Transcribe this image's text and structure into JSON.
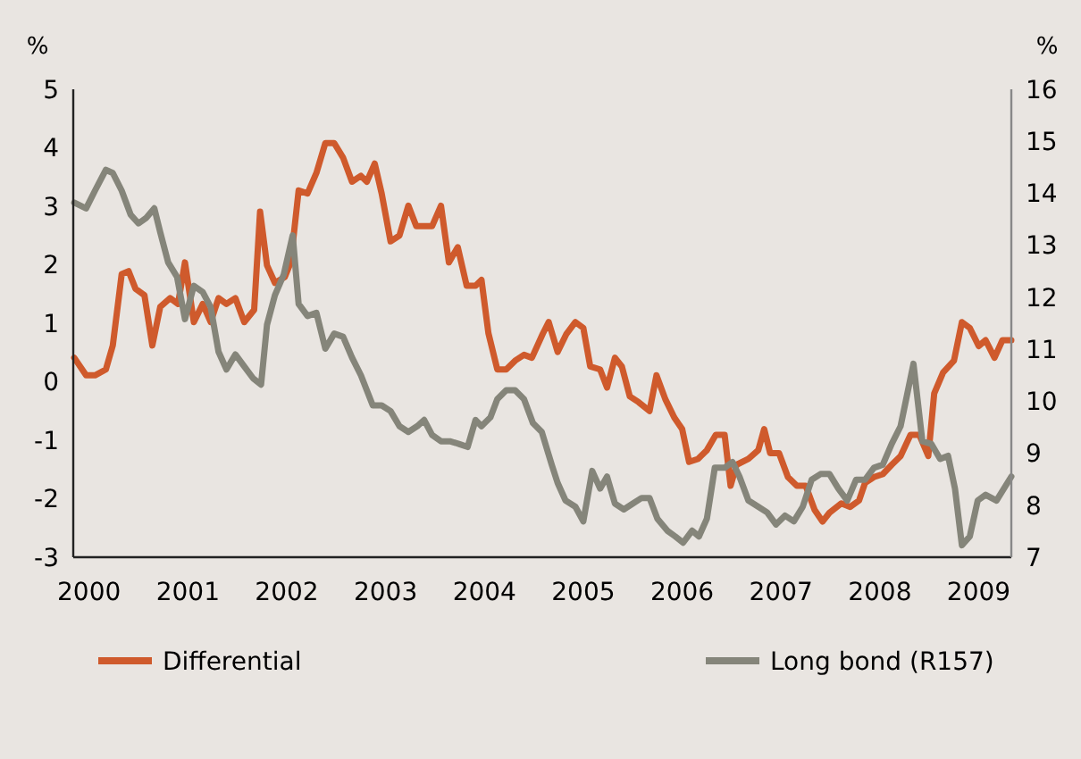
{
  "chart_data": {
    "type": "line",
    "ylabel": "%",
    "y2label": "%",
    "xlim": [
      1999.84,
      2009.33
    ],
    "xticks": [
      2000,
      2001,
      2002,
      2003,
      2004,
      2005,
      2006,
      2007,
      2008,
      2009
    ],
    "ylim": [
      -3,
      5
    ],
    "yticks": [
      -3,
      -2,
      -1,
      0,
      1,
      2,
      3,
      4,
      5
    ],
    "y2lim": [
      7,
      16
    ],
    "y2ticks": [
      7,
      8,
      9,
      10,
      11,
      12,
      13,
      14,
      15,
      16
    ],
    "grid": false,
    "legend": "bottom",
    "marker": "none",
    "line_style": "solid",
    "series": [
      {
        "name": "Differential",
        "color": "#cf5a2c",
        "x": [
          1999.85,
          1999.97,
          2000.06,
          2000.17,
          2000.24,
          2000.33,
          2000.4,
          2000.47,
          2000.56,
          2000.64,
          2000.72,
          2000.82,
          2000.9,
          2000.97,
          2001.06,
          2001.15,
          2001.23,
          2001.31,
          2001.39,
          2001.48,
          2001.57,
          2001.67,
          2001.73,
          2001.8,
          2001.88,
          2001.98,
          2002.04,
          2002.12,
          2002.21,
          2002.3,
          2002.39,
          2002.48,
          2002.57,
          2002.66,
          2002.75,
          2002.81,
          2002.89,
          2002.96,
          2003.05,
          2003.14,
          2003.23,
          2003.31,
          2003.38,
          2003.47,
          2003.56,
          2003.64,
          2003.73,
          2003.82,
          2003.91,
          2003.97,
          2004.04,
          2004.13,
          2004.22,
          2004.31,
          2004.4,
          2004.48,
          2004.59,
          2004.65,
          2004.74,
          2004.83,
          2004.92,
          2005.0,
          2005.07,
          2005.17,
          2005.24,
          2005.32,
          2005.39,
          2005.47,
          2005.56,
          2005.67,
          2005.74,
          2005.83,
          2005.92,
          2006.0,
          2006.07,
          2006.16,
          2006.25,
          2006.34,
          2006.43,
          2006.49,
          2006.55,
          2006.67,
          2006.77,
          2006.83,
          2006.89,
          2006.98,
          2007.07,
          2007.16,
          2007.25,
          2007.34,
          2007.42,
          2007.49,
          2007.61,
          2007.7,
          2007.79,
          2007.85,
          2007.94,
          2008.03,
          2008.12,
          2008.21,
          2008.31,
          2008.4,
          2008.49,
          2008.55,
          2008.64,
          2008.75,
          2008.83,
          2008.91,
          2009.0,
          2009.07,
          2009.16,
          2009.24,
          2009.33
        ],
        "values": [
          0.41,
          0.11,
          0.11,
          0.21,
          0.62,
          1.84,
          1.89,
          1.59,
          1.48,
          0.62,
          1.28,
          1.43,
          1.33,
          2.04,
          1.02,
          1.33,
          1.02,
          1.43,
          1.33,
          1.43,
          1.02,
          1.23,
          2.91,
          1.99,
          1.69,
          1.79,
          2.04,
          3.27,
          3.22,
          3.57,
          4.08,
          4.08,
          3.83,
          3.42,
          3.52,
          3.42,
          3.73,
          3.22,
          2.4,
          2.5,
          3.01,
          2.66,
          2.66,
          2.66,
          3.01,
          2.04,
          2.3,
          1.64,
          1.64,
          1.74,
          0.83,
          0.21,
          0.21,
          0.36,
          0.46,
          0.41,
          0.82,
          1.02,
          0.51,
          0.82,
          1.02,
          0.92,
          0.26,
          0.21,
          -0.1,
          0.41,
          0.26,
          -0.25,
          -0.35,
          -0.5,
          0.11,
          -0.3,
          -0.61,
          -0.81,
          -1.37,
          -1.32,
          -1.17,
          -0.91,
          -0.91,
          -1.78,
          -1.42,
          -1.32,
          -1.17,
          -0.81,
          -1.22,
          -1.22,
          -1.63,
          -1.78,
          -1.78,
          -2.19,
          -2.39,
          -2.24,
          -2.08,
          -2.14,
          -2.03,
          -1.73,
          -1.63,
          -1.58,
          -1.42,
          -1.27,
          -0.91,
          -0.91,
          -1.27,
          -0.2,
          0.16,
          0.36,
          1.02,
          0.92,
          0.61,
          0.71,
          0.41,
          0.71,
          0.71
        ]
      },
      {
        "name": "Long bond (R157)",
        "color": "#85857a",
        "axis": "y2",
        "x": [
          1999.85,
          1999.97,
          2000.06,
          2000.17,
          2000.24,
          2000.33,
          2000.42,
          2000.5,
          2000.58,
          2000.66,
          2000.72,
          2000.8,
          2000.89,
          2000.97,
          2001.06,
          2001.15,
          2001.23,
          2001.31,
          2001.39,
          2001.48,
          2001.57,
          2001.66,
          2001.74,
          2001.8,
          2001.88,
          2001.97,
          2002.06,
          2002.12,
          2002.21,
          2002.3,
          2002.39,
          2002.48,
          2002.57,
          2002.66,
          2002.75,
          2002.87,
          2002.96,
          2003.05,
          2003.14,
          2003.23,
          2003.32,
          2003.39,
          2003.47,
          2003.56,
          2003.65,
          2003.74,
          2003.83,
          2003.91,
          2003.97,
          2004.06,
          2004.13,
          2004.22,
          2004.31,
          2004.4,
          2004.49,
          2004.58,
          2004.68,
          2004.74,
          2004.82,
          2004.92,
          2005.0,
          2005.09,
          2005.17,
          2005.24,
          2005.32,
          2005.41,
          2005.5,
          2005.59,
          2005.67,
          2005.75,
          2005.85,
          2005.93,
          2006.01,
          2006.1,
          2006.17,
          2006.25,
          2006.33,
          2006.43,
          2006.51,
          2006.58,
          2006.67,
          2006.77,
          2006.86,
          2006.95,
          2007.04,
          2007.13,
          2007.22,
          2007.31,
          2007.4,
          2007.49,
          2007.58,
          2007.67,
          2007.76,
          2007.85,
          2007.94,
          2008.03,
          2008.12,
          2008.21,
          2008.34,
          2008.43,
          2008.52,
          2008.61,
          2008.69,
          2008.76,
          2008.83,
          2008.91,
          2008.99,
          2009.07,
          2009.18,
          2009.33
        ],
        "values": [
          13.82,
          13.71,
          14.05,
          14.45,
          14.39,
          14.05,
          13.59,
          13.42,
          13.53,
          13.71,
          13.25,
          12.67,
          12.39,
          11.58,
          12.22,
          12.1,
          11.81,
          10.95,
          10.61,
          10.9,
          10.67,
          10.44,
          10.32,
          11.47,
          12.04,
          12.44,
          13.19,
          11.87,
          11.64,
          11.7,
          11.01,
          11.3,
          11.24,
          10.84,
          10.5,
          9.92,
          9.92,
          9.81,
          9.52,
          9.41,
          9.52,
          9.64,
          9.35,
          9.23,
          9.23,
          9.18,
          9.12,
          9.64,
          9.52,
          9.69,
          10.04,
          10.21,
          10.21,
          10.04,
          9.58,
          9.41,
          8.78,
          8.43,
          8.09,
          7.97,
          7.69,
          8.66,
          8.32,
          8.55,
          8.03,
          7.92,
          8.03,
          8.14,
          8.14,
          7.74,
          7.51,
          7.4,
          7.28,
          7.51,
          7.4,
          7.74,
          8.72,
          8.72,
          8.83,
          8.55,
          8.09,
          7.97,
          7.86,
          7.63,
          7.8,
          7.69,
          7.97,
          8.49,
          8.6,
          8.6,
          8.32,
          8.09,
          8.49,
          8.49,
          8.72,
          8.78,
          9.18,
          9.52,
          10.72,
          9.23,
          9.18,
          8.89,
          8.95,
          8.32,
          7.23,
          7.4,
          8.09,
          8.2,
          8.09,
          8.55
        ]
      }
    ]
  }
}
